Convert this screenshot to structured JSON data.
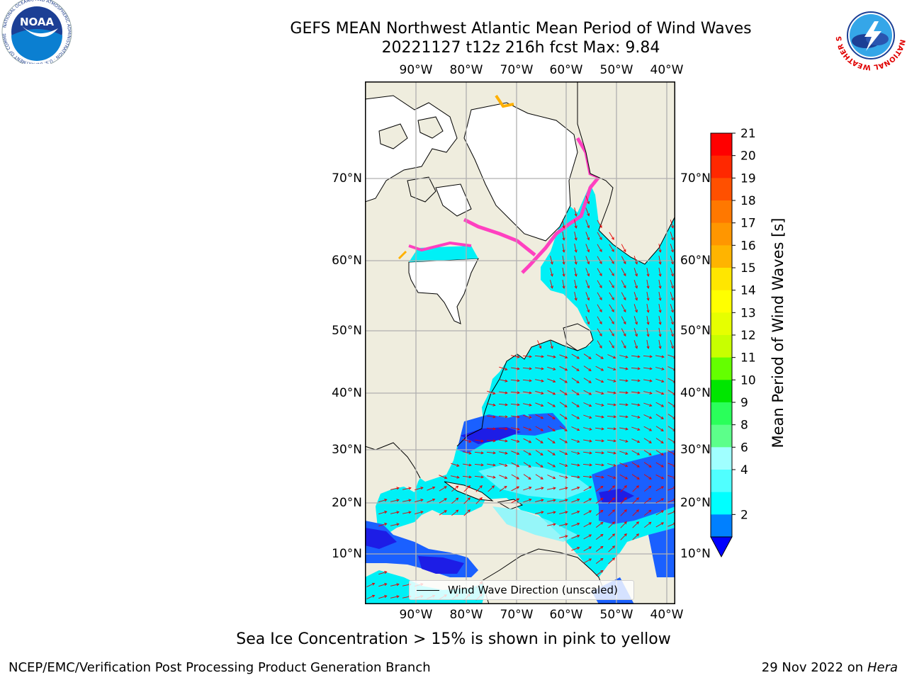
{
  "title": {
    "line1": "GEFS MEAN Northwest Atlantic Mean Period of Wind Waves",
    "line2": "20221127 t12z 216h fcst   Max: 9.84"
  },
  "map": {
    "lon_labels": [
      "90°W",
      "80°W",
      "70°W",
      "60°W",
      "50°W",
      "40°W"
    ],
    "lat_labels": [
      "70°N",
      "60°N",
      "50°N",
      "40°N",
      "30°N",
      "20°N",
      "10°N"
    ],
    "legend_label": "Wind Wave Direction (unscaled)",
    "colors": {
      "land": "#efedde",
      "ice_free_region": "#ffffff",
      "arrow": "#e60000",
      "grid": "#b0b0b0"
    }
  },
  "colorbar": {
    "title": "Mean Period of Wind Waves [s]",
    "ticks": [
      "21",
      "20",
      "19",
      "18",
      "17",
      "16",
      "15",
      "14",
      "13",
      "12",
      "11",
      "10",
      "9",
      "8",
      "6",
      "4",
      "2"
    ],
    "colors": [
      "#ff0000",
      "#ff2800",
      "#ff5000",
      "#ff7800",
      "#ff9600",
      "#ffb400",
      "#ffe600",
      "#ffff00",
      "#e6ff00",
      "#c8ff00",
      "#64ff00",
      "#00e600",
      "#2aff5a",
      "#5cff8a",
      "#a0ffff",
      "#50ffff",
      "#00ffff",
      "#0080ff"
    ],
    "under_color": "#0000ff"
  },
  "notes": {
    "ice": "Sea Ice Concentration > 15% is shown in pink to yellow"
  },
  "footer": {
    "left": "NCEP/EMC/Verification Post Processing Product Generation Branch",
    "date": "29 Nov 2022 on",
    "machine": "Hera"
  },
  "logos": {
    "noaa_text": "NOAA",
    "noaa_ring": "NATIONAL OCEANIC AND ATMOSPHERIC ADMINISTRATION · U.S. DEPARTMENT OF COMMERCE",
    "nws_ring": "NATIONAL WEATHER SERVICE"
  }
}
